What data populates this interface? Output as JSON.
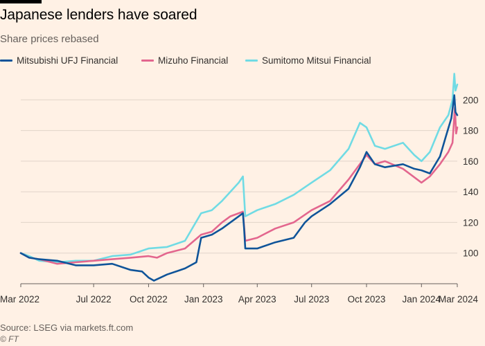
{
  "header": {
    "title": "Japanese lenders have soared",
    "subtitle": "Share prices rebased"
  },
  "footer": {
    "source": "Source: LSEG via markets.ft.com",
    "copyright": "© FT"
  },
  "chart_data": {
    "type": "line",
    "title": "Japanese lenders have soared",
    "subtitle": "Share prices rebased",
    "x_tick_labels": [
      "Mar 2022",
      "Jul 2022",
      "Oct 2022",
      "Jan 2023",
      "Apr 2023",
      "Jul 2023",
      "Oct 2023",
      "Jan 2024",
      "Mar 2024"
    ],
    "x_tick_dates": [
      "2022-03-01",
      "2022-07-01",
      "2022-10-01",
      "2023-01-01",
      "2023-04-01",
      "2023-07-01",
      "2023-10-01",
      "2024-01-01",
      "2024-03-01"
    ],
    "x_range": [
      "2022-03-01",
      "2024-03-01"
    ],
    "y_ticks": [
      100,
      120,
      140,
      160,
      180,
      200
    ],
    "ylim": [
      80,
      220
    ],
    "grid": true,
    "legend_position": "top",
    "series": [
      {
        "name": "Mitsubishi UFJ Financial",
        "color": "#0f5499",
        "points": [
          [
            "2022-03-01",
            100
          ],
          [
            "2022-03-15",
            97
          ],
          [
            "2022-04-01",
            96
          ],
          [
            "2022-05-01",
            95
          ],
          [
            "2022-06-01",
            92
          ],
          [
            "2022-07-01",
            92
          ],
          [
            "2022-08-01",
            93
          ],
          [
            "2022-09-01",
            89
          ],
          [
            "2022-09-20",
            88
          ],
          [
            "2022-10-01",
            84
          ],
          [
            "2022-10-10",
            82
          ],
          [
            "2022-11-01",
            86
          ],
          [
            "2022-12-01",
            90
          ],
          [
            "2022-12-20",
            94
          ],
          [
            "2022-12-28",
            110
          ],
          [
            "2023-01-15",
            112
          ],
          [
            "2023-02-01",
            116
          ],
          [
            "2023-02-15",
            120
          ],
          [
            "2023-03-01",
            124
          ],
          [
            "2023-03-08",
            126
          ],
          [
            "2023-03-10",
            116
          ],
          [
            "2023-03-12",
            103
          ],
          [
            "2023-04-01",
            103
          ],
          [
            "2023-05-01",
            107
          ],
          [
            "2023-06-01",
            110
          ],
          [
            "2023-06-20",
            120
          ],
          [
            "2023-07-01",
            124
          ],
          [
            "2023-08-01",
            132
          ],
          [
            "2023-09-01",
            142
          ],
          [
            "2023-09-20",
            156
          ],
          [
            "2023-10-01",
            166
          ],
          [
            "2023-10-15",
            158
          ],
          [
            "2023-11-01",
            156
          ],
          [
            "2023-12-01",
            158
          ],
          [
            "2023-12-20",
            155
          ],
          [
            "2024-01-01",
            154
          ],
          [
            "2024-01-15",
            152
          ],
          [
            "2024-02-01",
            163
          ],
          [
            "2024-02-10",
            175
          ],
          [
            "2024-02-20",
            188
          ],
          [
            "2024-02-25",
            203
          ],
          [
            "2024-02-27",
            192
          ],
          [
            "2024-03-01",
            190
          ]
        ]
      },
      {
        "name": "Mizuho Financial",
        "color": "#e3668e",
        "points": [
          [
            "2022-03-01",
            100
          ],
          [
            "2022-03-15",
            97
          ],
          [
            "2022-04-01",
            96
          ],
          [
            "2022-05-01",
            93
          ],
          [
            "2022-06-01",
            94
          ],
          [
            "2022-07-01",
            95
          ],
          [
            "2022-08-01",
            96
          ],
          [
            "2022-09-01",
            97
          ],
          [
            "2022-10-01",
            98
          ],
          [
            "2022-10-15",
            97
          ],
          [
            "2022-11-01",
            100
          ],
          [
            "2022-12-01",
            103
          ],
          [
            "2022-12-28",
            112
          ],
          [
            "2023-01-15",
            114
          ],
          [
            "2023-02-01",
            120
          ],
          [
            "2023-02-15",
            124
          ],
          [
            "2023-03-01",
            126
          ],
          [
            "2023-03-08",
            127
          ],
          [
            "2023-03-12",
            108
          ],
          [
            "2023-04-01",
            110
          ],
          [
            "2023-05-01",
            116
          ],
          [
            "2023-06-01",
            120
          ],
          [
            "2023-07-01",
            128
          ],
          [
            "2023-08-01",
            134
          ],
          [
            "2023-09-01",
            148
          ],
          [
            "2023-10-01",
            164
          ],
          [
            "2023-10-15",
            158
          ],
          [
            "2023-11-01",
            160
          ],
          [
            "2023-12-01",
            155
          ],
          [
            "2024-01-01",
            146
          ],
          [
            "2024-01-15",
            150
          ],
          [
            "2024-02-01",
            158
          ],
          [
            "2024-02-15",
            166
          ],
          [
            "2024-02-22",
            172
          ],
          [
            "2024-02-26",
            195
          ],
          [
            "2024-02-28",
            178
          ],
          [
            "2024-03-01",
            182
          ]
        ]
      },
      {
        "name": "Sumitomo Mitsui Financial",
        "color": "#70dbe4",
        "points": [
          [
            "2022-03-01",
            100
          ],
          [
            "2022-03-15",
            98
          ],
          [
            "2022-04-01",
            95
          ],
          [
            "2022-05-01",
            94
          ],
          [
            "2022-06-01",
            95
          ],
          [
            "2022-07-01",
            95
          ],
          [
            "2022-08-01",
            98
          ],
          [
            "2022-09-01",
            99
          ],
          [
            "2022-10-01",
            103
          ],
          [
            "2022-11-01",
            104
          ],
          [
            "2022-12-01",
            108
          ],
          [
            "2022-12-28",
            126
          ],
          [
            "2023-01-15",
            128
          ],
          [
            "2023-02-01",
            134
          ],
          [
            "2023-02-15",
            140
          ],
          [
            "2023-03-01",
            146
          ],
          [
            "2023-03-08",
            150
          ],
          [
            "2023-03-12",
            124
          ],
          [
            "2023-04-01",
            128
          ],
          [
            "2023-05-01",
            132
          ],
          [
            "2023-06-01",
            138
          ],
          [
            "2023-07-01",
            146
          ],
          [
            "2023-08-01",
            154
          ],
          [
            "2023-09-01",
            168
          ],
          [
            "2023-09-20",
            185
          ],
          [
            "2023-10-01",
            182
          ],
          [
            "2023-10-15",
            170
          ],
          [
            "2023-11-01",
            168
          ],
          [
            "2023-12-01",
            172
          ],
          [
            "2023-12-20",
            164
          ],
          [
            "2024-01-01",
            160
          ],
          [
            "2024-01-15",
            166
          ],
          [
            "2024-02-01",
            182
          ],
          [
            "2024-02-15",
            190
          ],
          [
            "2024-02-22",
            200
          ],
          [
            "2024-02-25",
            217
          ],
          [
            "2024-02-27",
            206
          ],
          [
            "2024-03-01",
            210
          ]
        ]
      }
    ]
  }
}
